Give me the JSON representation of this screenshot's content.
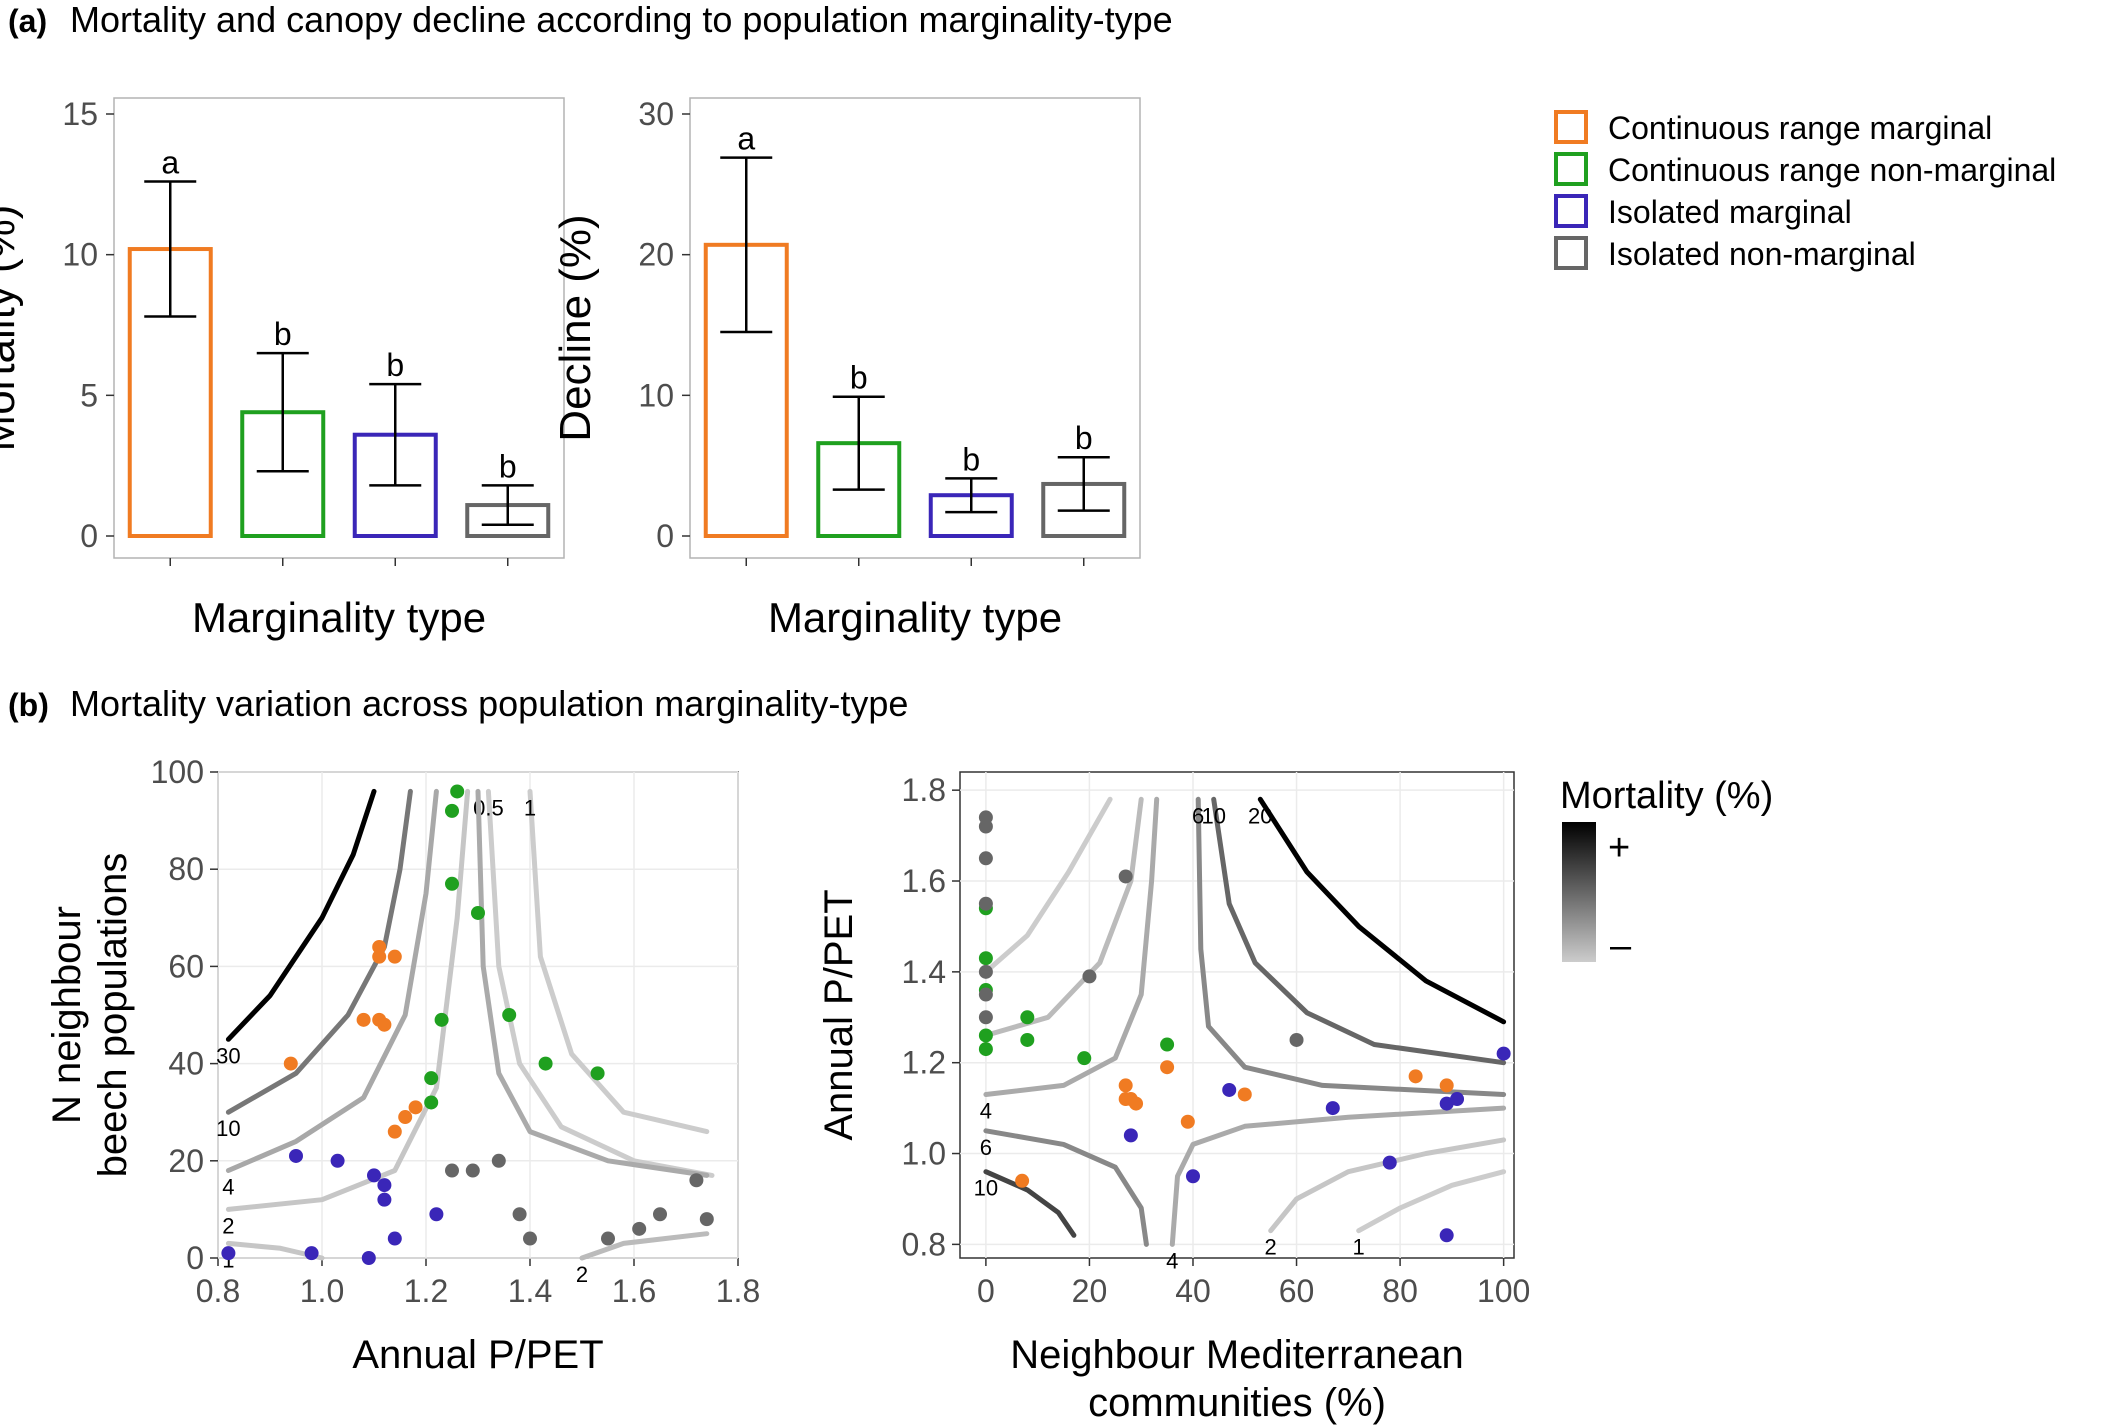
{
  "panel_a": {
    "letter": "(a)",
    "heading": "Mortality and canopy decline according to population marginality-type"
  },
  "panel_b": {
    "letter": "(b)",
    "heading": "Mortality variation across population marginality-type"
  },
  "legend": {
    "items": [
      {
        "label": "Continuous range marginal",
        "color": "#f07b22"
      },
      {
        "label": "Continuous range non-marginal",
        "color": "#1fa01f"
      },
      {
        "label": "Isolated marginal",
        "color": "#3a26b8"
      },
      {
        "label": "Isolated non-marginal",
        "color": "#666666"
      }
    ]
  },
  "gradient_legend": {
    "title": "Mortality (%)",
    "plus": "+",
    "minus": "–",
    "colors": [
      "#000000",
      "#cccccc"
    ]
  },
  "chart_data": [
    {
      "type": "bar",
      "xlabel": "Marginality type",
      "ylabel": "Mortality (%)",
      "ylim": [
        0,
        15
      ],
      "yticks": [
        0,
        5,
        10,
        15
      ],
      "categories": [
        "Continuous range marginal",
        "Continuous range non-marginal",
        "Isolated marginal",
        "Isolated non-marginal"
      ],
      "values": [
        10.2,
        4.4,
        3.6,
        1.1
      ],
      "error_low": [
        7.8,
        2.3,
        1.8,
        0.4
      ],
      "error_high": [
        12.6,
        6.5,
        5.4,
        1.8
      ],
      "labels": [
        "a",
        "b",
        "b",
        "b"
      ],
      "colors": [
        "#f07b22",
        "#1fa01f",
        "#3a26b8",
        "#666666"
      ]
    },
    {
      "type": "bar",
      "xlabel": "Marginality type",
      "ylabel": "Decline (%)",
      "ylim": [
        0,
        30
      ],
      "yticks": [
        0,
        10,
        20,
        30
      ],
      "categories": [
        "Continuous range marginal",
        "Continuous range non-marginal",
        "Isolated marginal",
        "Isolated non-marginal"
      ],
      "values": [
        20.7,
        6.6,
        2.9,
        3.7
      ],
      "error_low": [
        14.5,
        3.3,
        1.7,
        1.8
      ],
      "error_high": [
        26.9,
        9.9,
        4.1,
        5.6
      ],
      "labels": [
        "a",
        "b",
        "b",
        "b"
      ],
      "colors": [
        "#f07b22",
        "#1fa01f",
        "#3a26b8",
        "#666666"
      ]
    },
    {
      "type": "scatter",
      "xlabel": "Annual P/PET",
      "ylabel": "N neighbour beech populations",
      "xlim": [
        0.8,
        1.8
      ],
      "ylim": [
        0,
        100
      ],
      "xticks": [
        "0.8",
        "1.0",
        "1.2",
        "1.4",
        "1.6",
        "1.8"
      ],
      "yticks": [
        "0",
        "20",
        "40",
        "60",
        "80",
        "100"
      ],
      "grid": true,
      "contours": [
        {
          "label": "30",
          "color": "#000000",
          "x": [
            0.82,
            0.9,
            1.0,
            1.06,
            1.1
          ],
          "y": [
            45,
            54,
            70,
            83,
            96
          ]
        },
        {
          "label": "10",
          "color": "#777777",
          "x": [
            0.82,
            0.95,
            1.05,
            1.12,
            1.15,
            1.17
          ],
          "y": [
            30,
            38,
            50,
            64,
            80,
            96
          ]
        },
        {
          "label": "4",
          "color": "#a8a8a8",
          "x": [
            0.82,
            0.95,
            1.08,
            1.16,
            1.2,
            1.22
          ],
          "y": [
            18,
            24,
            33,
            50,
            75,
            96
          ]
        },
        {
          "label": "2",
          "color": "#c6c6c6",
          "x": [
            0.82,
            1.0,
            1.14,
            1.22,
            1.26,
            1.28
          ],
          "y": [
            10,
            12,
            18,
            35,
            70,
            96
          ]
        },
        {
          "label": "1",
          "color": "#c6c6c6",
          "x": [
            0.82,
            0.92,
            1.0
          ],
          "y": [
            3,
            2,
            0
          ]
        },
        {
          "label": "0.5",
          "color": "#cccccc",
          "x": [
            1.32,
            1.34,
            1.38,
            1.46,
            1.6,
            1.75
          ],
          "y": [
            96,
            60,
            40,
            27,
            20,
            17
          ]
        },
        {
          "label": "",
          "color": "#aaaaaa",
          "x": [
            1.3,
            1.31,
            1.34,
            1.4,
            1.55,
            1.74
          ],
          "y": [
            96,
            60,
            38,
            26,
            20,
            17
          ]
        },
        {
          "label": "1",
          "color": "#cccccc",
          "x": [
            1.4,
            1.42,
            1.48,
            1.58,
            1.74
          ],
          "y": [
            96,
            62,
            42,
            30,
            26
          ]
        },
        {
          "label": "2",
          "color": "#bbbbbb",
          "x": [
            1.5,
            1.58,
            1.74
          ],
          "y": [
            0,
            3,
            5
          ]
        }
      ],
      "points": [
        {
          "x": 0.94,
          "y": 40,
          "group": "Continuous range marginal"
        },
        {
          "x": 1.08,
          "y": 49,
          "group": "Continuous range marginal"
        },
        {
          "x": 1.11,
          "y": 49,
          "group": "Continuous range marginal"
        },
        {
          "x": 1.12,
          "y": 48,
          "group": "Continuous range marginal"
        },
        {
          "x": 1.11,
          "y": 62,
          "group": "Continuous range marginal"
        },
        {
          "x": 1.11,
          "y": 64,
          "group": "Continuous range marginal"
        },
        {
          "x": 1.14,
          "y": 62,
          "group": "Continuous range marginal"
        },
        {
          "x": 1.14,
          "y": 26,
          "group": "Continuous range marginal"
        },
        {
          "x": 1.16,
          "y": 29,
          "group": "Continuous range marginal"
        },
        {
          "x": 1.18,
          "y": 31,
          "group": "Continuous range marginal"
        },
        {
          "x": 1.26,
          "y": 96,
          "group": "Continuous range non-marginal"
        },
        {
          "x": 1.25,
          "y": 92,
          "group": "Continuous range non-marginal"
        },
        {
          "x": 1.25,
          "y": 77,
          "group": "Continuous range non-marginal"
        },
        {
          "x": 1.3,
          "y": 71,
          "group": "Continuous range non-marginal"
        },
        {
          "x": 1.23,
          "y": 49,
          "group": "Continuous range non-marginal"
        },
        {
          "x": 1.36,
          "y": 50,
          "group": "Continuous range non-marginal"
        },
        {
          "x": 1.43,
          "y": 40,
          "group": "Continuous range non-marginal"
        },
        {
          "x": 1.53,
          "y": 38,
          "group": "Continuous range non-marginal"
        },
        {
          "x": 1.21,
          "y": 37,
          "group": "Continuous range non-marginal"
        },
        {
          "x": 1.21,
          "y": 32,
          "group": "Continuous range non-marginal"
        },
        {
          "x": 0.95,
          "y": 21,
          "group": "Isolated marginal"
        },
        {
          "x": 1.03,
          "y": 20,
          "group": "Isolated marginal"
        },
        {
          "x": 1.1,
          "y": 17,
          "group": "Isolated marginal"
        },
        {
          "x": 1.12,
          "y": 15,
          "group": "Isolated marginal"
        },
        {
          "x": 1.12,
          "y": 12,
          "group": "Isolated marginal"
        },
        {
          "x": 1.22,
          "y": 9,
          "group": "Isolated marginal"
        },
        {
          "x": 1.14,
          "y": 4,
          "group": "Isolated marginal"
        },
        {
          "x": 0.82,
          "y": 1,
          "group": "Isolated marginal"
        },
        {
          "x": 0.98,
          "y": 1,
          "group": "Isolated marginal"
        },
        {
          "x": 1.09,
          "y": 0,
          "group": "Isolated marginal"
        },
        {
          "x": 1.25,
          "y": 18,
          "group": "Isolated non-marginal"
        },
        {
          "x": 1.29,
          "y": 18,
          "group": "Isolated non-marginal"
        },
        {
          "x": 1.34,
          "y": 20,
          "group": "Isolated non-marginal"
        },
        {
          "x": 1.38,
          "y": 9,
          "group": "Isolated non-marginal"
        },
        {
          "x": 1.4,
          "y": 4,
          "group": "Isolated non-marginal"
        },
        {
          "x": 1.55,
          "y": 4,
          "group": "Isolated non-marginal"
        },
        {
          "x": 1.61,
          "y": 6,
          "group": "Isolated non-marginal"
        },
        {
          "x": 1.65,
          "y": 9,
          "group": "Isolated non-marginal"
        },
        {
          "x": 1.72,
          "y": 16,
          "group": "Isolated non-marginal"
        },
        {
          "x": 1.74,
          "y": 8,
          "group": "Isolated non-marginal"
        }
      ]
    },
    {
      "type": "scatter",
      "xlabel": "Neighbour Mediterranean communities (%)",
      "ylabel": "Annual P/PET",
      "xlim": [
        -5,
        102
      ],
      "ylim": [
        0.77,
        1.84
      ],
      "xticks": [
        "0",
        "20",
        "40",
        "60",
        "80",
        "100"
      ],
      "yticks": [
        "0.8",
        "1.0",
        "1.2",
        "1.4",
        "1.6",
        "1.8"
      ],
      "grid": true,
      "contours": [
        {
          "label": "20",
          "color": "#000000",
          "x": [
            53,
            62,
            72,
            85,
            100
          ],
          "y": [
            1.78,
            1.62,
            1.5,
            1.38,
            1.29
          ]
        },
        {
          "label": "10",
          "color": "#666666",
          "x": [
            44,
            47,
            52,
            62,
            75,
            100
          ],
          "y": [
            1.78,
            1.55,
            1.42,
            1.31,
            1.24,
            1.2
          ]
        },
        {
          "label": "6",
          "color": "#888888",
          "x": [
            41,
            41.5,
            43,
            50,
            65,
            100
          ],
          "y": [
            1.78,
            1.45,
            1.28,
            1.19,
            1.15,
            1.13
          ]
        },
        {
          "label": "4",
          "color": "#aaaaaa",
          "x": [
            0,
            15,
            25,
            30,
            32,
            33
          ],
          "y": [
            1.13,
            1.15,
            1.21,
            1.35,
            1.6,
            1.78
          ]
        },
        {
          "label": "",
          "color": "#bbbbbb",
          "x": [
            0,
            12,
            22,
            28,
            30
          ],
          "y": [
            1.26,
            1.3,
            1.42,
            1.6,
            1.78
          ]
        },
        {
          "label": "",
          "color": "#cccccc",
          "x": [
            0,
            8,
            16,
            24
          ],
          "y": [
            1.4,
            1.48,
            1.62,
            1.78
          ]
        },
        {
          "label": "10",
          "color": "#444444",
          "x": [
            0,
            8,
            14,
            17
          ],
          "y": [
            0.96,
            0.92,
            0.87,
            0.82
          ]
        },
        {
          "label": "6",
          "color": "#888888",
          "x": [
            0,
            15,
            25,
            30,
            31
          ],
          "y": [
            1.05,
            1.02,
            0.97,
            0.88,
            0.8
          ]
        },
        {
          "label": "4",
          "color": "#aaaaaa",
          "x": [
            36,
            37,
            40,
            50,
            70,
            100
          ],
          "y": [
            0.8,
            0.95,
            1.02,
            1.06,
            1.08,
            1.1
          ]
        },
        {
          "label": "2",
          "color": "#c6c6c6",
          "x": [
            55,
            60,
            70,
            85,
            100
          ],
          "y": [
            0.83,
            0.9,
            0.96,
            1.0,
            1.03
          ]
        },
        {
          "label": "1",
          "color": "#cccccc",
          "x": [
            72,
            80,
            90,
            100
          ],
          "y": [
            0.83,
            0.88,
            0.93,
            0.96
          ]
        }
      ],
      "points": [
        {
          "x": 7,
          "y": 0.94,
          "group": "Continuous range marginal"
        },
        {
          "x": 27,
          "y": 1.15,
          "group": "Continuous range marginal"
        },
        {
          "x": 27,
          "y": 1.12,
          "group": "Continuous range marginal"
        },
        {
          "x": 28,
          "y": 1.12,
          "group": "Continuous range marginal"
        },
        {
          "x": 29,
          "y": 1.11,
          "group": "Continuous range marginal"
        },
        {
          "x": 35,
          "y": 1.19,
          "group": "Continuous range marginal"
        },
        {
          "x": 39,
          "y": 1.07,
          "group": "Continuous range marginal"
        },
        {
          "x": 50,
          "y": 1.13,
          "group": "Continuous range marginal"
        },
        {
          "x": 83,
          "y": 1.17,
          "group": "Continuous range marginal"
        },
        {
          "x": 89,
          "y": 1.15,
          "group": "Continuous range marginal"
        },
        {
          "x": 0,
          "y": 1.54,
          "group": "Continuous range non-marginal"
        },
        {
          "x": 0,
          "y": 1.43,
          "group": "Continuous range non-marginal"
        },
        {
          "x": 0,
          "y": 1.36,
          "group": "Continuous range non-marginal"
        },
        {
          "x": 0,
          "y": 1.26,
          "group": "Continuous range non-marginal"
        },
        {
          "x": 0,
          "y": 1.23,
          "group": "Continuous range non-marginal"
        },
        {
          "x": 8,
          "y": 1.3,
          "group": "Continuous range non-marginal"
        },
        {
          "x": 8,
          "y": 1.25,
          "group": "Continuous range non-marginal"
        },
        {
          "x": 19,
          "y": 1.21,
          "group": "Continuous range non-marginal"
        },
        {
          "x": 35,
          "y": 1.24,
          "group": "Continuous range non-marginal"
        },
        {
          "x": 28,
          "y": 1.04,
          "group": "Isolated marginal"
        },
        {
          "x": 40,
          "y": 0.95,
          "group": "Isolated marginal"
        },
        {
          "x": 47,
          "y": 1.14,
          "group": "Isolated marginal"
        },
        {
          "x": 67,
          "y": 1.1,
          "group": "Isolated marginal"
        },
        {
          "x": 78,
          "y": 0.98,
          "group": "Isolated marginal"
        },
        {
          "x": 89,
          "y": 1.11,
          "group": "Isolated marginal"
        },
        {
          "x": 91,
          "y": 1.12,
          "group": "Isolated marginal"
        },
        {
          "x": 100,
          "y": 1.22,
          "group": "Isolated marginal"
        },
        {
          "x": 89,
          "y": 0.82,
          "group": "Isolated marginal"
        },
        {
          "x": 0,
          "y": 1.74,
          "group": "Isolated non-marginal"
        },
        {
          "x": 0,
          "y": 1.72,
          "group": "Isolated non-marginal"
        },
        {
          "x": 0,
          "y": 1.65,
          "group": "Isolated non-marginal"
        },
        {
          "x": 0,
          "y": 1.55,
          "group": "Isolated non-marginal"
        },
        {
          "x": 0,
          "y": 1.4,
          "group": "Isolated non-marginal"
        },
        {
          "x": 0,
          "y": 1.35,
          "group": "Isolated non-marginal"
        },
        {
          "x": 0,
          "y": 1.3,
          "group": "Isolated non-marginal"
        },
        {
          "x": 20,
          "y": 1.39,
          "group": "Isolated non-marginal"
        },
        {
          "x": 27,
          "y": 1.61,
          "group": "Isolated non-marginal"
        },
        {
          "x": 60,
          "y": 1.25,
          "group": "Isolated non-marginal"
        }
      ]
    }
  ]
}
